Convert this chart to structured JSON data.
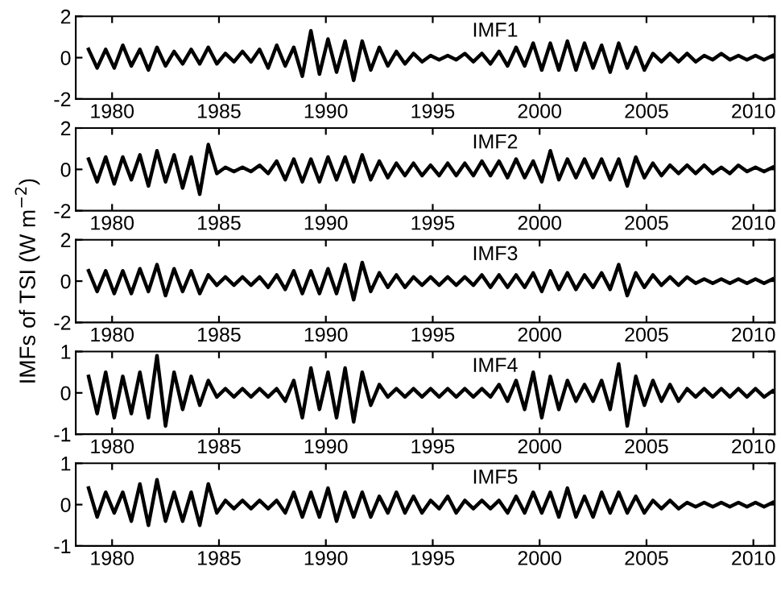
{
  "chart_data": [
    {
      "type": "line",
      "annotations": [
        "IMF1"
      ],
      "xlim": [
        1978.3,
        2011
      ],
      "xticks": [
        1980,
        1985,
        1990,
        1995,
        2000,
        2005,
        2010
      ],
      "ylim": [
        -2,
        2
      ],
      "yticks": [
        -2,
        0,
        2
      ],
      "x": [
        1978.9,
        1979.3,
        1979.7,
        1980.1,
        1980.5,
        1980.9,
        1981.3,
        1981.7,
        1982.1,
        1982.5,
        1982.9,
        1983.3,
        1983.7,
        1984.1,
        1984.5,
        1984.9,
        1985.3,
        1985.7,
        1986.1,
        1986.5,
        1986.9,
        1987.3,
        1987.7,
        1988.1,
        1988.5,
        1988.9,
        1989.3,
        1989.7,
        1990.1,
        1990.5,
        1990.9,
        1991.3,
        1991.7,
        1992.1,
        1992.5,
        1992.9,
        1993.3,
        1993.7,
        1994.1,
        1994.5,
        1994.9,
        1995.3,
        1995.7,
        1996.1,
        1996.5,
        1996.9,
        1997.3,
        1997.7,
        1998.1,
        1998.5,
        1998.9,
        1999.3,
        1999.7,
        2000.1,
        2000.5,
        2000.9,
        2001.3,
        2001.7,
        2002.1,
        2002.5,
        2002.9,
        2003.3,
        2003.7,
        2004.1,
        2004.5,
        2004.9,
        2005.3,
        2005.7,
        2006.1,
        2006.5,
        2006.9,
        2007.3,
        2007.7,
        2008.1,
        2008.5,
        2008.9,
        2009.3,
        2009.7,
        2010.1,
        2010.5,
        2010.9
      ],
      "series": [
        {
          "color": "#000000",
          "values": [
            0.4,
            -0.5,
            0.4,
            -0.5,
            0.6,
            -0.4,
            0.4,
            -0.6,
            0.5,
            -0.4,
            0.3,
            -0.3,
            0.4,
            -0.3,
            0.5,
            -0.3,
            0.2,
            -0.2,
            0.3,
            -0.2,
            0.4,
            -0.5,
            0.6,
            -0.4,
            0.5,
            -0.9,
            1.3,
            -0.8,
            0.9,
            -0.7,
            0.8,
            -1.1,
            0.8,
            -0.6,
            0.5,
            -0.4,
            0.3,
            -0.3,
            0.2,
            -0.2,
            0.1,
            -0.1,
            0.1,
            -0.1,
            0.2,
            -0.2,
            0.2,
            -0.3,
            0.3,
            -0.4,
            0.5,
            -0.4,
            0.7,
            -0.6,
            0.7,
            -0.6,
            0.8,
            -0.6,
            0.7,
            -0.5,
            0.6,
            -0.7,
            0.7,
            -0.5,
            0.5,
            -0.6,
            0.2,
            -0.2,
            0.2,
            -0.2,
            0.2,
            -0.2,
            0.1,
            -0.1,
            0.2,
            -0.1,
            0.1,
            -0.1,
            0.1,
            -0.1,
            0.1
          ]
        }
      ]
    },
    {
      "type": "line",
      "annotations": [
        "IMF2"
      ],
      "xlim": [
        1978.3,
        2011
      ],
      "xticks": [
        1980,
        1985,
        1990,
        1995,
        2000,
        2005,
        2010
      ],
      "ylim": [
        -2,
        2
      ],
      "yticks": [
        -2,
        0,
        2
      ],
      "x": [
        1978.9,
        1979.3,
        1979.7,
        1980.1,
        1980.5,
        1980.9,
        1981.3,
        1981.7,
        1982.1,
        1982.5,
        1982.9,
        1983.3,
        1983.7,
        1984.1,
        1984.5,
        1984.9,
        1985.3,
        1985.7,
        1986.1,
        1986.5,
        1986.9,
        1987.3,
        1987.7,
        1988.1,
        1988.5,
        1988.9,
        1989.3,
        1989.7,
        1990.1,
        1990.5,
        1990.9,
        1991.3,
        1991.7,
        1992.1,
        1992.5,
        1992.9,
        1993.3,
        1993.7,
        1994.1,
        1994.5,
        1994.9,
        1995.3,
        1995.7,
        1996.1,
        1996.5,
        1996.9,
        1997.3,
        1997.7,
        1998.1,
        1998.5,
        1998.9,
        1999.3,
        1999.7,
        2000.1,
        2000.5,
        2000.9,
        2001.3,
        2001.7,
        2002.1,
        2002.5,
        2002.9,
        2003.3,
        2003.7,
        2004.1,
        2004.5,
        2004.9,
        2005.3,
        2005.7,
        2006.1,
        2006.5,
        2006.9,
        2007.3,
        2007.7,
        2008.1,
        2008.5,
        2008.9,
        2009.3,
        2009.7,
        2010.1,
        2010.5,
        2010.9
      ],
      "series": [
        {
          "color": "#000000",
          "values": [
            0.5,
            -0.6,
            0.6,
            -0.7,
            0.6,
            -0.5,
            0.7,
            -0.8,
            0.9,
            -0.6,
            0.7,
            -0.9,
            0.6,
            -1.2,
            1.2,
            -0.2,
            0.1,
            -0.1,
            0.1,
            -0.1,
            0.2,
            -0.2,
            0.4,
            -0.5,
            0.5,
            -0.6,
            0.5,
            -0.6,
            0.6,
            -0.5,
            0.6,
            -0.6,
            0.7,
            -0.5,
            0.4,
            -0.4,
            0.3,
            -0.3,
            0.3,
            -0.3,
            0.2,
            -0.3,
            0.3,
            -0.3,
            0.3,
            -0.3,
            0.4,
            -0.3,
            0.4,
            -0.4,
            0.5,
            -0.4,
            0.4,
            -0.6,
            0.9,
            -0.5,
            0.5,
            -0.4,
            0.5,
            -0.4,
            0.5,
            -0.5,
            0.5,
            -0.8,
            0.6,
            -0.4,
            0.3,
            -0.3,
            0.2,
            -0.2,
            0.2,
            -0.2,
            0.2,
            -0.2,
            0.1,
            -0.2,
            0.2,
            -0.1,
            0.1,
            -0.1,
            0.1
          ]
        }
      ]
    },
    {
      "type": "line",
      "annotations": [
        "IMF3"
      ],
      "ylabel": "IMFs of TSI (W m$^{−2}$)",
      "xlim": [
        1978.3,
        2011
      ],
      "xticks": [
        1980,
        1985,
        1990,
        1995,
        2000,
        2005,
        2010
      ],
      "ylim": [
        -2,
        2
      ],
      "yticks": [
        -2,
        0,
        2
      ],
      "x": [
        1978.9,
        1979.3,
        1979.7,
        1980.1,
        1980.5,
        1980.9,
        1981.3,
        1981.7,
        1982.1,
        1982.5,
        1982.9,
        1983.3,
        1983.7,
        1984.1,
        1984.5,
        1984.9,
        1985.3,
        1985.7,
        1986.1,
        1986.5,
        1986.9,
        1987.3,
        1987.7,
        1988.1,
        1988.5,
        1988.9,
        1989.3,
        1989.7,
        1990.1,
        1990.5,
        1990.9,
        1991.3,
        1991.7,
        1992.1,
        1992.5,
        1992.9,
        1993.3,
        1993.7,
        1994.1,
        1994.5,
        1994.9,
        1995.3,
        1995.7,
        1996.1,
        1996.5,
        1996.9,
        1997.3,
        1997.7,
        1998.1,
        1998.5,
        1998.9,
        1999.3,
        1999.7,
        2000.1,
        2000.5,
        2000.9,
        2001.3,
        2001.7,
        2002.1,
        2002.5,
        2002.9,
        2003.3,
        2003.7,
        2004.1,
        2004.5,
        2004.9,
        2005.3,
        2005.7,
        2006.1,
        2006.5,
        2006.9,
        2007.3,
        2007.7,
        2008.1,
        2008.5,
        2008.9,
        2009.3,
        2009.7,
        2010.1,
        2010.5,
        2010.9
      ],
      "series": [
        {
          "color": "#000000",
          "values": [
            0.5,
            -0.5,
            0.5,
            -0.6,
            0.5,
            -0.6,
            0.6,
            -0.5,
            0.8,
            -0.7,
            0.6,
            -0.5,
            0.5,
            -0.6,
            0.3,
            -0.2,
            0.2,
            -0.2,
            0.2,
            -0.2,
            0.2,
            -0.3,
            0.3,
            -0.4,
            0.5,
            -0.6,
            0.5,
            -0.6,
            0.6,
            -0.6,
            0.8,
            -0.9,
            0.9,
            -0.5,
            0.4,
            -0.3,
            0.3,
            -0.3,
            0.2,
            -0.2,
            0.2,
            -0.2,
            0.2,
            -0.2,
            0.2,
            -0.2,
            0.3,
            -0.3,
            0.3,
            -0.3,
            0.3,
            -0.3,
            0.4,
            -0.5,
            0.5,
            -0.4,
            0.4,
            -0.4,
            0.3,
            -0.3,
            0.4,
            -0.4,
            0.8,
            -0.7,
            0.4,
            -0.3,
            0.3,
            -0.2,
            0.2,
            -0.2,
            0.2,
            -0.1,
            0.1,
            -0.1,
            0.1,
            -0.1,
            0.1,
            -0.1,
            0.1,
            -0.1,
            0.1
          ]
        }
      ]
    },
    {
      "type": "line",
      "annotations": [
        "IMF4"
      ],
      "xlim": [
        1978.3,
        2011
      ],
      "xticks": [
        1980,
        1985,
        1990,
        1995,
        2000,
        2005,
        2010
      ],
      "ylim": [
        -1,
        1
      ],
      "yticks": [
        -1,
        0,
        1
      ],
      "x": [
        1978.9,
        1979.3,
        1979.7,
        1980.1,
        1980.5,
        1980.9,
        1981.3,
        1981.7,
        1982.1,
        1982.5,
        1982.9,
        1983.3,
        1983.7,
        1984.1,
        1984.5,
        1984.9,
        1985.3,
        1985.7,
        1986.1,
        1986.5,
        1986.9,
        1987.3,
        1987.7,
        1988.1,
        1988.5,
        1988.9,
        1989.3,
        1989.7,
        1990.1,
        1990.5,
        1990.9,
        1991.3,
        1991.7,
        1992.1,
        1992.5,
        1992.9,
        1993.3,
        1993.7,
        1994.1,
        1994.5,
        1994.9,
        1995.3,
        1995.7,
        1996.1,
        1996.5,
        1996.9,
        1997.3,
        1997.7,
        1998.1,
        1998.5,
        1998.9,
        1999.3,
        1999.7,
        2000.1,
        2000.5,
        2000.9,
        2001.3,
        2001.7,
        2002.1,
        2002.5,
        2002.9,
        2003.3,
        2003.7,
        2004.1,
        2004.5,
        2004.9,
        2005.3,
        2005.7,
        2006.1,
        2006.5,
        2006.9,
        2007.3,
        2007.7,
        2008.1,
        2008.5,
        2008.9,
        2009.3,
        2009.7,
        2010.1,
        2010.5,
        2010.9
      ],
      "series": [
        {
          "color": "#000000",
          "values": [
            0.4,
            -0.5,
            0.5,
            -0.6,
            0.4,
            -0.5,
            0.5,
            -0.6,
            0.9,
            -0.8,
            0.5,
            -0.4,
            0.4,
            -0.3,
            0.3,
            -0.1,
            0.1,
            -0.1,
            0.1,
            -0.1,
            0.1,
            -0.1,
            0.1,
            -0.2,
            0.3,
            -0.6,
            0.6,
            -0.4,
            0.5,
            -0.6,
            0.6,
            -0.7,
            0.5,
            -0.3,
            0.2,
            -0.1,
            0.1,
            -0.1,
            0.1,
            -0.1,
            0.1,
            -0.1,
            0.1,
            -0.1,
            0.1,
            -0.1,
            0.1,
            -0.1,
            0.2,
            -0.2,
            0.3,
            -0.4,
            0.5,
            -0.6,
            0.4,
            -0.4,
            0.3,
            -0.2,
            0.2,
            -0.2,
            0.3,
            -0.4,
            0.7,
            -0.8,
            0.4,
            -0.3,
            0.3,
            -0.2,
            0.2,
            -0.2,
            0.1,
            -0.1,
            0.1,
            -0.1,
            0.1,
            -0.1,
            0.1,
            -0.1,
            0.1,
            -0.1,
            0.05
          ]
        }
      ]
    },
    {
      "type": "line",
      "annotations": [
        "IMF5"
      ],
      "xlim": [
        1978.3,
        2011
      ],
      "xticks": [
        1980,
        1985,
        1990,
        1995,
        2000,
        2005,
        2010
      ],
      "ylim": [
        -1,
        1
      ],
      "yticks": [
        -1,
        0,
        1
      ],
      "x": [
        1978.9,
        1979.3,
        1979.7,
        1980.1,
        1980.5,
        1980.9,
        1981.3,
        1981.7,
        1982.1,
        1982.5,
        1982.9,
        1983.3,
        1983.7,
        1984.1,
        1984.5,
        1984.9,
        1985.3,
        1985.7,
        1986.1,
        1986.5,
        1986.9,
        1987.3,
        1987.7,
        1988.1,
        1988.5,
        1988.9,
        1989.3,
        1989.7,
        1990.1,
        1990.5,
        1990.9,
        1991.3,
        1991.7,
        1992.1,
        1992.5,
        1992.9,
        1993.3,
        1993.7,
        1994.1,
        1994.5,
        1994.9,
        1995.3,
        1995.7,
        1996.1,
        1996.5,
        1996.9,
        1997.3,
        1997.7,
        1998.1,
        1998.5,
        1998.9,
        1999.3,
        1999.7,
        2000.1,
        2000.5,
        2000.9,
        2001.3,
        2001.7,
        2002.1,
        2002.5,
        2002.9,
        2003.3,
        2003.7,
        2004.1,
        2004.5,
        2004.9,
        2005.3,
        2005.7,
        2006.1,
        2006.5,
        2006.9,
        2007.3,
        2007.7,
        2008.1,
        2008.5,
        2008.9,
        2009.3,
        2009.7,
        2010.1,
        2010.5,
        2010.9
      ],
      "series": [
        {
          "color": "#000000",
          "values": [
            0.4,
            -0.3,
            0.3,
            -0.2,
            0.3,
            -0.4,
            0.5,
            -0.5,
            0.6,
            -0.4,
            0.3,
            -0.4,
            0.3,
            -0.5,
            0.5,
            -0.2,
            0.1,
            -0.1,
            0.1,
            -0.1,
            0.1,
            -0.1,
            0.1,
            -0.2,
            0.3,
            -0.3,
            0.3,
            -0.3,
            0.4,
            -0.4,
            0.3,
            -0.3,
            0.3,
            -0.3,
            0.2,
            -0.2,
            0.3,
            -0.2,
            0.2,
            -0.2,
            0.1,
            -0.1,
            0.2,
            -0.2,
            0.1,
            -0.1,
            0.1,
            -0.1,
            0.1,
            -0.2,
            0.2,
            -0.2,
            0.3,
            -0.2,
            0.3,
            -0.3,
            0.4,
            -0.3,
            0.2,
            -0.3,
            0.3,
            -0.2,
            0.3,
            -0.2,
            0.2,
            -0.2,
            0.1,
            -0.1,
            0.1,
            -0.1,
            0.05,
            -0.05,
            0.05,
            -0.05,
            0.05,
            -0.05,
            0.05,
            -0.05,
            0.05,
            -0.05,
            0.05
          ]
        }
      ]
    }
  ]
}
